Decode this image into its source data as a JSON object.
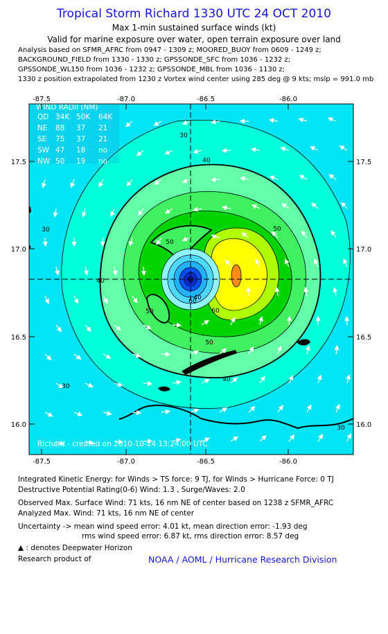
{
  "header": {
    "title": "Tropical Storm Richard 1330 UTC 24 OCT 2010",
    "subtitle1": "Max 1-min sustained surface winds (kt)",
    "subtitle2": "Valid for marine exposure over water, open terrain exposure over land"
  },
  "analysis_lines": [
    "Analysis based on SFMR_AFRC from 0947 - 1309 z; MOORED_BUOY from 0609 - 1249 z;",
    "BACKGROUND_FIELD from 1330 - 1330 z; GPSSONDE_SFC from 1036 - 1232 z;",
    "GPSSONDE_WL150 from 1036 - 1232 z; GPSSONDE_MBL from 1036 - 1130 z;",
    "1330 z position extrapolated from 1230 z Vortex wind center using 285 deg @ 9 kts; mslp = 991.0 mb"
  ],
  "map": {
    "lon_ticks": [
      "-87.5",
      "-87.0",
      "-86.5",
      "-86.0"
    ],
    "lat_ticks": [
      "17.5",
      "17.0",
      "16.5",
      "16.0"
    ],
    "credit": "Richard - created on 2010-10-24 13:24:00 UTC",
    "contour_labels": [
      "40",
      "30",
      "50",
      "50",
      "60",
      "60",
      "50",
      "40",
      "30",
      "30",
      "50",
      "40",
      "30",
      "40"
    ],
    "colors": {
      "ocean_light": "#00e4f4",
      "ring_30": "#00ffd8",
      "ring_40": "#62ffa8",
      "ring_50": "#40f060",
      "ring_60": "#00d400",
      "ring_70": "#b0ff00",
      "ring_80": "#ffff00",
      "max": "#ff8c1a",
      "eye": "#0050ff"
    },
    "wind_radii": {
      "title": "WIND RADII (NM)",
      "header": [
        "QD",
        "34K",
        "50K",
        "64K"
      ],
      "rows": [
        [
          "NE",
          "88",
          "37",
          "21"
        ],
        [
          "SE",
          "75",
          "37",
          "21"
        ],
        [
          "SW",
          "47",
          "18",
          "no"
        ],
        [
          "NW",
          "50",
          "19",
          "no"
        ]
      ]
    }
  },
  "footer": {
    "ike": "Integrated Kinetic Energy:  for Winds > TS force: 9 TJ,  for Winds > Hurricane Force: 0 TJ",
    "dpr": "Destructive Potential Rating(0-6)   Wind: 1.3 , Surge/Waves: 2.0",
    "obs_max": "Observed Max. Surface Wind: 71 kts, 16 nm NE of center based on 1238 z SFMR_AFRC",
    "ana_max": "Analyzed Max. Wind: 71 kts, 16 nm NE of center",
    "unc1": "Uncertainty -> mean wind speed error: 4.01 kt,   mean direction error:  -1.93 deg",
    "unc2": "rms wind speed error: 6.87 kt,   rms direction error: 8.57 deg",
    "dwh": " : denotes Deepwater Horizon",
    "research": "Research product of",
    "org": "NOAA / AOML / Hurricane Research Division"
  }
}
